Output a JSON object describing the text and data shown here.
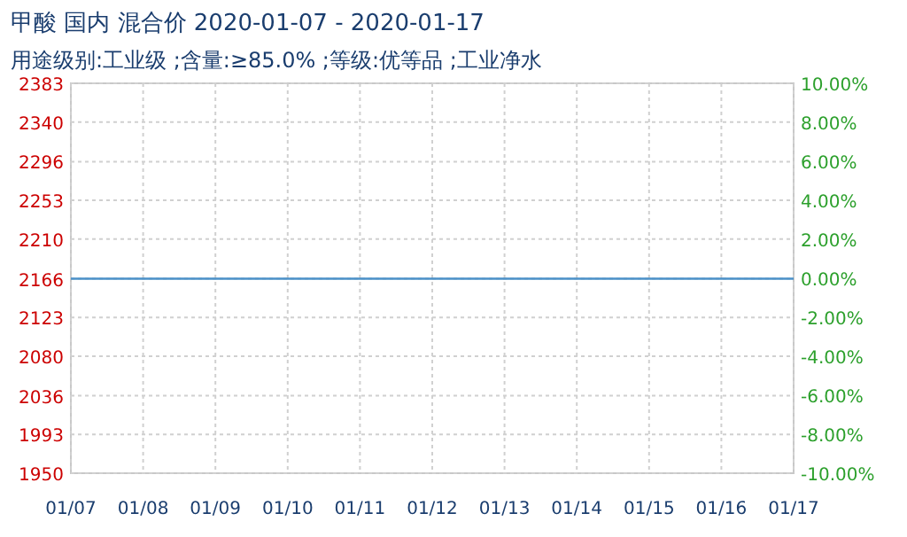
{
  "chart_data": {
    "type": "line",
    "title": "甲酸 国内 混合价 2020-01-07 - 2020-01-17",
    "subtitle": "用途级别:工业级 ;含量:≥85.0% ;等级:优等品 ;工业净水",
    "x": [
      "--01-07",
      "--01-08",
      "--01-09",
      "--01-10",
      "--01-11",
      "--01-12",
      "--01-13",
      "--01-14",
      "--01-15",
      "--01-16",
      "--01-17"
    ],
    "series": [
      {
        "color": "#4a90c8",
        "values": [
          2166,
          2166,
          2166,
          2166,
          2166,
          2166,
          2166,
          2166,
          2166,
          2166,
          2166
        ]
      }
    ],
    "xlim": [
      "--01-07",
      "--01-17"
    ],
    "xticks": [
      {
        "value": "--01-07",
        "label": "01/07"
      },
      {
        "value": "--01-08",
        "label": "01/08"
      },
      {
        "value": "--01-09",
        "label": "01/09"
      },
      {
        "value": "--01-10",
        "label": "01/10"
      },
      {
        "value": "--01-11",
        "label": "01/11"
      },
      {
        "value": "--01-12",
        "label": "01/12"
      },
      {
        "value": "--01-13",
        "label": "01/13"
      },
      {
        "value": "--01-14",
        "label": "01/14"
      },
      {
        "value": "--01-15",
        "label": "01/15"
      },
      {
        "value": "--01-16",
        "label": "01/16"
      },
      {
        "value": "--01-17",
        "label": "01/17"
      }
    ],
    "ylim": [
      1950,
      2383
    ],
    "yticks": [
      1950,
      1993,
      2036,
      2080,
      2123,
      2166,
      2210,
      2253,
      2296,
      2340,
      2383
    ],
    "y2lim": [
      -10,
      10
    ],
    "y2ticks": [
      {
        "value": -10,
        "label": "-10.00%"
      },
      {
        "value": -8,
        "label": "-8.00%"
      },
      {
        "value": -6,
        "label": "-6.00%"
      },
      {
        "value": -4,
        "label": "-4.00%"
      },
      {
        "value": -2,
        "label": "-2.00%"
      },
      {
        "value": 0,
        "label": "0.00%"
      },
      {
        "value": 2,
        "label": "2.00%"
      },
      {
        "value": 4,
        "label": "4.00%"
      },
      {
        "value": 6,
        "label": "6.00%"
      },
      {
        "value": 8,
        "label": "8.00%"
      },
      {
        "value": 10,
        "label": "10.00%"
      }
    ],
    "grid": true,
    "marker": "none",
    "line_style": "solid"
  }
}
